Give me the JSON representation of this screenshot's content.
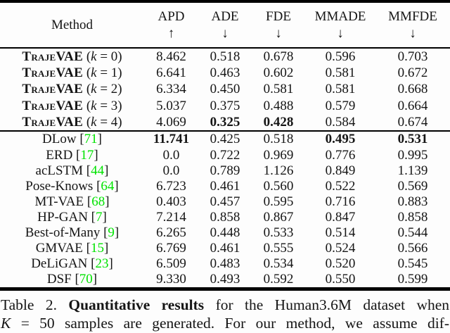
{
  "colors": {
    "text": "#151515",
    "citation_green": "#00e300",
    "rule": "#000000",
    "background": "#fdfdfd"
  },
  "table": {
    "columns": [
      {
        "label": "Method",
        "arrow": ""
      },
      {
        "label": "APD",
        "arrow": "↑"
      },
      {
        "label": "ADE",
        "arrow": "↓"
      },
      {
        "label": "FDE",
        "arrow": "↓"
      },
      {
        "label": "MMADE",
        "arrow": "↓"
      },
      {
        "label": "MMFDE",
        "arrow": "↓"
      }
    ],
    "cite_brackets": [
      "[",
      "]"
    ],
    "sections": [
      {
        "name": "ours",
        "rows": [
          {
            "method": {
              "kind": "smallcaps-math",
              "name": "TrajeVAE",
              "open": "(",
              "var": "k",
              "eq": "=",
              "value": "0",
              "close": ")"
            },
            "cells": [
              "8.462",
              "0.518",
              "0.678",
              "0.596",
              "0.703"
            ],
            "bold_cols": []
          },
          {
            "method": {
              "kind": "smallcaps-math",
              "name": "TrajeVAE",
              "open": "(",
              "var": "k",
              "eq": "=",
              "value": "1",
              "close": ")"
            },
            "cells": [
              "6.641",
              "0.463",
              "0.602",
              "0.581",
              "0.672"
            ],
            "bold_cols": []
          },
          {
            "method": {
              "kind": "smallcaps-math",
              "name": "TrajeVAE",
              "open": "(",
              "var": "k",
              "eq": "=",
              "value": "2",
              "close": ")"
            },
            "cells": [
              "6.334",
              "0.450",
              "0.581",
              "0.581",
              "0.668"
            ],
            "bold_cols": []
          },
          {
            "method": {
              "kind": "smallcaps-math",
              "name": "TrajeVAE",
              "open": "(",
              "var": "k",
              "eq": "=",
              "value": "3",
              "close": ")"
            },
            "cells": [
              "5.037",
              "0.375",
              "0.488",
              "0.579",
              "0.664"
            ],
            "bold_cols": []
          },
          {
            "method": {
              "kind": "smallcaps-math",
              "name": "TrajeVAE",
              "open": "(",
              "var": "k",
              "eq": "=",
              "value": "4",
              "close": ")"
            },
            "cells": [
              "4.069",
              "0.325",
              "0.428",
              "0.584",
              "0.674"
            ],
            "bold_cols": [
              1,
              2
            ]
          }
        ]
      },
      {
        "name": "baselines",
        "rows": [
          {
            "method": {
              "kind": "cite",
              "name": "DLow",
              "ref": "71"
            },
            "cells": [
              "11.741",
              "0.425",
              "0.518",
              "0.495",
              "0.531"
            ],
            "bold_cols": [
              0,
              3,
              4
            ]
          },
          {
            "method": {
              "kind": "cite",
              "name": "ERD",
              "ref": "17"
            },
            "cells": [
              "0.0",
              "0.722",
              "0.969",
              "0.776",
              "0.995"
            ],
            "bold_cols": []
          },
          {
            "method": {
              "kind": "cite",
              "name": "acLSTM",
              "ref": "44"
            },
            "cells": [
              "0.0",
              "0.789",
              "1.126",
              "0.849",
              "1.139"
            ],
            "bold_cols": []
          },
          {
            "method": {
              "kind": "cite",
              "name": "Pose-Knows",
              "ref": "64"
            },
            "cells": [
              "6.723",
              "0.461",
              "0.560",
              "0.522",
              "0.569"
            ],
            "bold_cols": []
          },
          {
            "method": {
              "kind": "cite",
              "name": "MT-VAE",
              "ref": "68"
            },
            "cells": [
              "0.403",
              "0.457",
              "0.595",
              "0.716",
              "0.883"
            ],
            "bold_cols": []
          },
          {
            "method": {
              "kind": "cite",
              "name": "HP-GAN",
              "ref": "7"
            },
            "cells": [
              "7.214",
              "0.858",
              "0.867",
              "0.847",
              "0.858"
            ],
            "bold_cols": []
          },
          {
            "method": {
              "kind": "cite",
              "name": "Best-of-Many",
              "ref": "9"
            },
            "cells": [
              "6.265",
              "0.448",
              "0.533",
              "0.514",
              "0.544"
            ],
            "bold_cols": []
          },
          {
            "method": {
              "kind": "cite",
              "name": "GMVAE",
              "ref": "15"
            },
            "cells": [
              "6.769",
              "0.461",
              "0.555",
              "0.524",
              "0.566"
            ],
            "bold_cols": []
          },
          {
            "method": {
              "kind": "cite",
              "name": "DeLiGAN",
              "ref": "23"
            },
            "cells": [
              "6.509",
              "0.483",
              "0.534",
              "0.520",
              "0.545"
            ],
            "bold_cols": []
          },
          {
            "method": {
              "kind": "cite",
              "name": "DSF",
              "ref": "70"
            },
            "cells": [
              "9.330",
              "0.493",
              "0.592",
              "0.550",
              "0.599"
            ],
            "bold_cols": []
          }
        ]
      }
    ]
  },
  "caption": {
    "line1": {
      "label": "Table 2.",
      "bold": "Quantitative results",
      "rest": "for the Human3.6M dataset when"
    },
    "line2": {
      "math_var": "K",
      "rest": "= 50 samples are generated. For our method, we assume dif-"
    }
  }
}
